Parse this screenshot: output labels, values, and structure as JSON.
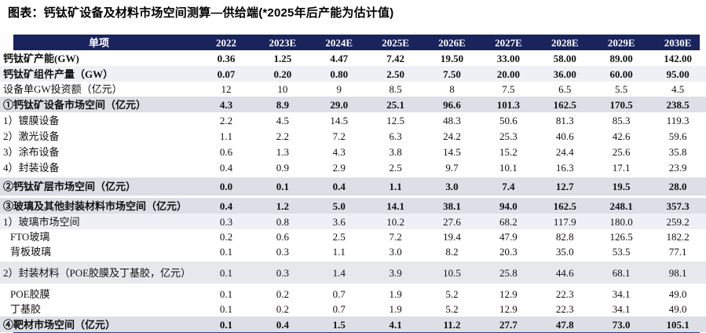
{
  "title": "图表：钙钛矿设备及材料市场空间测算—供给端(*2025年后产能为估计值)",
  "colors": {
    "header_navy": "#19235C",
    "section_grey": "#DCDFE5",
    "tint_blue": "#EEF0F5",
    "packaging_grey": "#E7E8EC",
    "bottom_line": "#333A8F",
    "header_text": "#FFFFFF"
  },
  "table": {
    "header": [
      "单项",
      "2022",
      "2023E",
      "2024E",
      "2025E",
      "2026E",
      "2027E",
      "2028E",
      "2029E",
      "2030E"
    ],
    "rows": [
      {
        "label": "钙钛矿产能(GW)",
        "bold": true,
        "bg": "white",
        "values": [
          "0.36",
          "1.25",
          "4.47",
          "7.42",
          "19.50",
          "33.00",
          "58.00",
          "89.00",
          "142.00"
        ]
      },
      {
        "label": "钙钛矿组件产量（GW）",
        "bold": true,
        "bg": "tint",
        "values": [
          "0.07",
          "0.20",
          "0.80",
          "2.50",
          "7.50",
          "20.00",
          "36.00",
          "60.00",
          "95.00"
        ]
      },
      {
        "label": "设备单GW投资额（亿元）",
        "bg": "white",
        "h19": true,
        "values": [
          "12",
          "10",
          "9",
          "8.5",
          "8",
          "7.5",
          "6.5",
          "5.5",
          "4.5"
        ]
      },
      {
        "label": "①钙钛矿设备市场空间（亿元）",
        "bold": true,
        "bg": "grey",
        "values": [
          "4.3",
          "8.9",
          "29.0",
          "25.1",
          "96.6",
          "101.3",
          "162.5",
          "170.5",
          "238.5"
        ]
      },
      {
        "label": "1）镀膜设备",
        "bg": "white",
        "values": [
          "2.2",
          "4.5",
          "14.5",
          "12.5",
          "48.3",
          "50.6",
          "81.3",
          "85.3",
          "119.3"
        ]
      },
      {
        "label": "2）激光设备",
        "bg": "white",
        "values": [
          "1.1",
          "2.2",
          "7.2",
          "6.3",
          "24.2",
          "25.3",
          "40.6",
          "42.6",
          "59.6"
        ]
      },
      {
        "label": "3）涂布设备",
        "bg": "white",
        "values": [
          "0.6",
          "1.3",
          "4.3",
          "3.8",
          "14.5",
          "15.2",
          "24.4",
          "25.6",
          "35.8"
        ]
      },
      {
        "label": "4）封装设备",
        "bg": "white",
        "values": [
          "0.4",
          "0.9",
          "2.9",
          "2.5",
          "9.7",
          "10.1",
          "16.3",
          "17.1",
          "23.9"
        ]
      },
      {
        "label": "②钙钛矿层市场空间（亿元）",
        "bold": true,
        "bg": "grey",
        "h23": true,
        "gap_before": true,
        "values": [
          "0.0",
          "0.1",
          "0.4",
          "1.1",
          "3.0",
          "7.4",
          "12.7",
          "19.5",
          "28.0"
        ]
      },
      {
        "label": "③玻璃及其他封装材料市场空间（亿元）",
        "bold": true,
        "bg": "grey",
        "gap_before": true,
        "values": [
          "0.4",
          "1.2",
          "5.0",
          "14.1",
          "38.1",
          "94.0",
          "162.5",
          "248.1",
          "357.3"
        ]
      },
      {
        "label": "1）玻璃市场空间",
        "bg": "tint",
        "values": [
          "0.3",
          "0.8",
          "3.6",
          "10.2",
          "27.6",
          "68.2",
          "117.9",
          "180.0",
          "259.2"
        ]
      },
      {
        "label": "FTO玻璃",
        "bg": "white",
        "indent": true,
        "h19": true,
        "values": [
          "0.2",
          "0.6",
          "2.5",
          "7.2",
          "19.4",
          "47.9",
          "82.8",
          "126.5",
          "182.2"
        ]
      },
      {
        "label": "背板玻璃",
        "bg": "white",
        "indent": true,
        "h19": true,
        "values": [
          "0.1",
          "0.3",
          "1.1",
          "3.0",
          "8.2",
          "20.3",
          "35.0",
          "53.5",
          "77.1"
        ]
      },
      {
        "label": "2）封装材料（POE胶膜及丁基胶，亿元）",
        "bg": "packbg",
        "tall": true,
        "gap_before": true,
        "values": [
          "0.1",
          "0.3",
          "1.4",
          "3.9",
          "10.5",
          "25.8",
          "44.6",
          "68.1",
          "98.1"
        ]
      },
      {
        "label": "POE胶膜",
        "bg": "white",
        "indent": true,
        "gap_before": true,
        "values": [
          "0.1",
          "0.2",
          "0.7",
          "1.9",
          "5.2",
          "12.9",
          "22.3",
          "34.1",
          "49.0"
        ]
      },
      {
        "label": "丁基胶",
        "bg": "white",
        "indent": true,
        "h19": true,
        "values": [
          "0.1",
          "0.2",
          "0.7",
          "1.9",
          "5.2",
          "12.9",
          "22.3",
          "34.1",
          "49.0"
        ]
      },
      {
        "label": "④靶材市场空间（亿元）",
        "bold": true,
        "bg": "grey",
        "values": [
          "0.1",
          "0.4",
          "1.5",
          "4.1",
          "11.2",
          "27.7",
          "47.8",
          "73.0",
          "105.1"
        ]
      }
    ]
  }
}
